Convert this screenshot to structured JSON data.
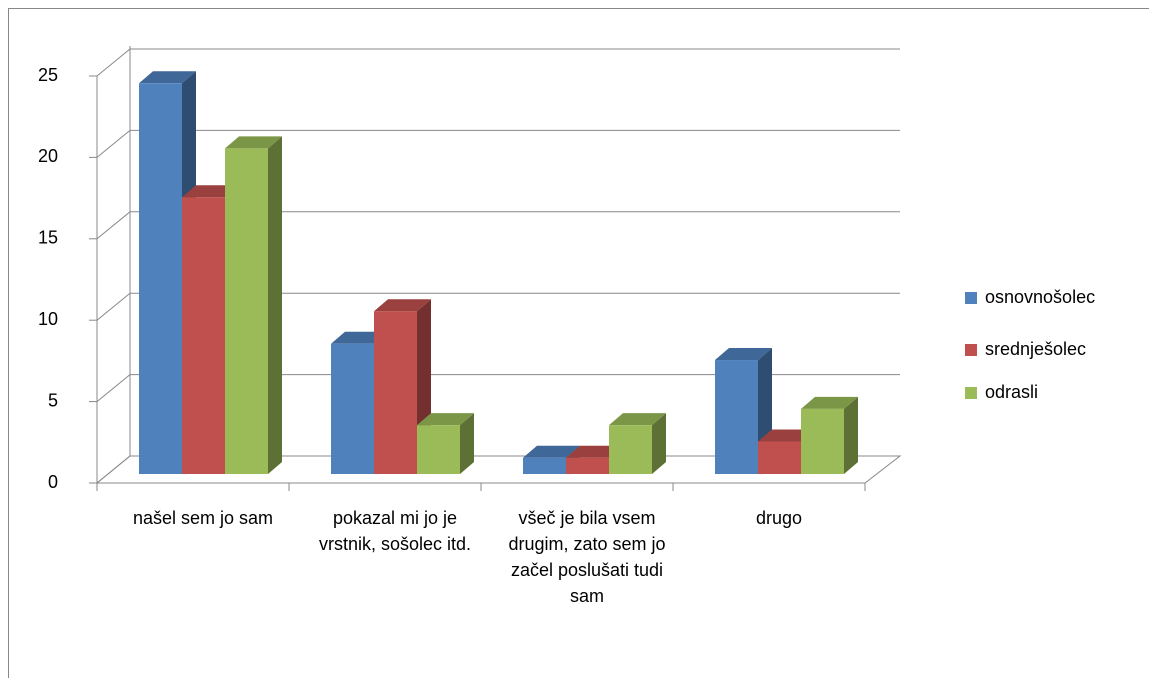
{
  "chart_data": {
    "type": "bar3d",
    "categories": [
      "našel sem jo sam",
      "pokazal mi jo je vrstnik, sošolec itd.",
      "všeč je bila vsem drugim, zato sem jo začel poslušati tudi sam",
      "drugo"
    ],
    "series": [
      {
        "name": "osnovnošolec",
        "color": "#4f81bd",
        "values": [
          24,
          8,
          1,
          7
        ]
      },
      {
        "name": "srednješolec",
        "color": "#c0504d",
        "values": [
          17,
          10,
          1,
          2
        ]
      },
      {
        "name": "odrasli",
        "color": "#9bbb59",
        "values": [
          20,
          3,
          3,
          4
        ]
      }
    ],
    "ylim": [
      0,
      25
    ],
    "yticks": [
      0,
      5,
      10,
      15,
      20,
      25
    ],
    "grid": true,
    "legend": "right"
  }
}
